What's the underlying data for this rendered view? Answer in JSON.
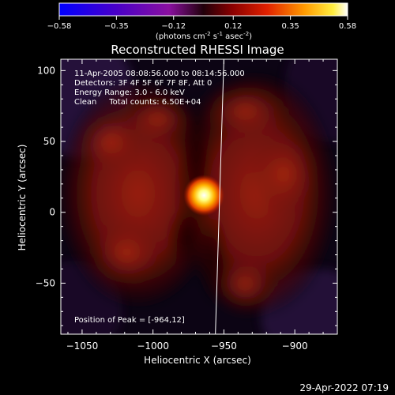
{
  "colorbar": {
    "ticks": [
      "-0.58",
      "-0.35",
      "-0.12",
      "0.12",
      "0.35",
      "0.58"
    ],
    "unit_prefix": "(photons cm",
    "unit_sup1": "-2",
    "unit_mid1": " s",
    "unit_sup2": "-1",
    "unit_mid2": " asec",
    "unit_sup3": "-2",
    "unit_suffix": ")"
  },
  "chart_data": {
    "type": "heatmap",
    "title": "Reconstructed RHESSI Image",
    "xlabel": "Heliocentric X (arcsec)",
    "ylabel": "Heliocentric Y (arcsec)",
    "xlim": [
      -1065,
      -870
    ],
    "ylim": [
      -86,
      108
    ],
    "x_ticks": [
      -1050,
      -1000,
      -950,
      -900
    ],
    "x_tick_labels": [
      "−1050",
      "−1000",
      "−950",
      "−900"
    ],
    "y_ticks": [
      100,
      50,
      0,
      -50
    ],
    "y_tick_labels": [
      "100",
      "50",
      "0",
      "−50"
    ],
    "colorbar_range": [
      -0.58,
      0.58
    ],
    "peak": {
      "x": -964,
      "y": 12
    },
    "limb_x": [
      -956,
      -950
    ],
    "annotations": [
      "11-Apr-2005 08:08:56.000 to 08:14:56.000",
      "Detectors: 3F 4F 5F 6F 7F 8F, Att 0",
      "Energy Range: 3.0 - 6.0 keV",
      "Clean     Total counts: 6.50E+04"
    ],
    "peak_label": "Position of Peak = [-964,12]"
  },
  "footer": {
    "timestamp": "29-Apr-2022 07:19"
  }
}
